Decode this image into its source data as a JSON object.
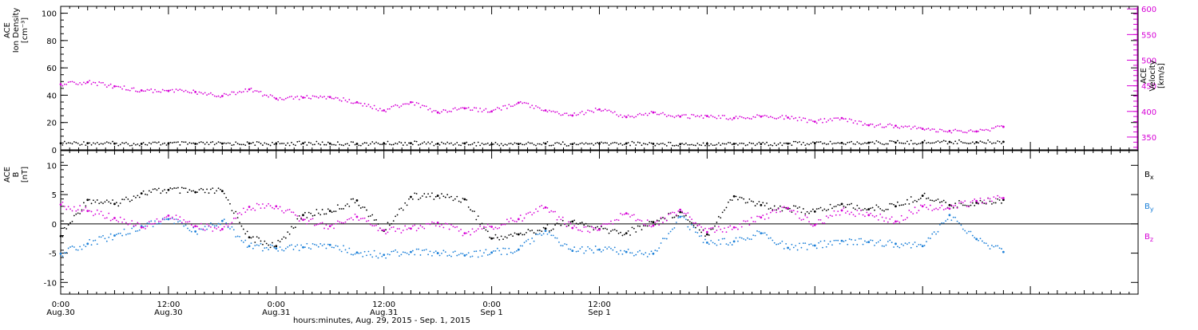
{
  "colors": {
    "black": "#000000",
    "magenta": "#d600d6",
    "blue": "#1a7fd8",
    "background": "#ffffff"
  },
  "chart_data": [
    {
      "type": "scatter",
      "panel": "plasma",
      "ylabel_left_lines": [
        "ACE",
        "Ion Density",
        "[cm⁻³]"
      ],
      "ylabel_right_lines": [
        "ACE",
        "Velocity",
        "[km/s]"
      ],
      "yticks_left": [
        "0",
        "20",
        "40",
        "60",
        "80",
        "100"
      ],
      "ylim_left": [
        0,
        105
      ],
      "yticks_right": [
        "350",
        "400",
        "450",
        "500",
        "550",
        "600"
      ],
      "ylim_right": [
        325,
        605
      ],
      "series": [
        {
          "axis": "left",
          "color": "black",
          "x": [
            0,
            3,
            6,
            9,
            12,
            15,
            18,
            21,
            24,
            27,
            30,
            33,
            36,
            39,
            42,
            45,
            48,
            51,
            54,
            57,
            60,
            63,
            66,
            69,
            72,
            75,
            78,
            81,
            84,
            87,
            90,
            93,
            96,
            99,
            102,
            105
          ],
          "y": [
            4.8,
            4.9,
            4.6,
            4.4,
            4.6,
            4.4,
            4.6,
            4.7,
            4.5,
            4.8,
            4.6,
            4.4,
            4.7,
            4.9,
            4.5,
            4.7,
            4.1,
            4.3,
            4.6,
            4.2,
            4.5,
            4.7,
            4.4,
            4.2,
            4.5,
            4.4,
            4.3,
            4.6,
            4.9,
            5.1,
            5.2,
            5.3,
            5.5,
            5.8,
            5.6,
            5.9
          ]
        },
        {
          "axis": "right",
          "color": "magenta",
          "x": [
            0,
            3,
            6,
            9,
            12,
            15,
            18,
            21,
            24,
            27,
            30,
            33,
            36,
            39,
            42,
            45,
            48,
            51,
            54,
            57,
            60,
            63,
            66,
            69,
            72,
            75,
            78,
            81,
            84,
            87,
            90,
            93,
            96,
            99,
            102,
            105
          ],
          "y": [
            453,
            457,
            449,
            441,
            440,
            438,
            430,
            443,
            425,
            427,
            428,
            418,
            402,
            418,
            398,
            406,
            400,
            417,
            402,
            392,
            404,
            389,
            398,
            390,
            391,
            387,
            390,
            388,
            380,
            387,
            373,
            372,
            366,
            362,
            361,
            370
          ]
        }
      ]
    },
    {
      "type": "scatter",
      "panel": "magnetic-field",
      "ylabel_left_lines": [
        "ACE",
        "B",
        "[nT]"
      ],
      "yticks_left": [
        "-10",
        "-5",
        "0",
        "5",
        "10"
      ],
      "ylim_left": [
        -12,
        12.5
      ],
      "series": [
        {
          "name": "Bx",
          "color": "black",
          "x": [
            0,
            3,
            6,
            9,
            12,
            15,
            18,
            21,
            24,
            27,
            30,
            33,
            36,
            39,
            42,
            45,
            48,
            51,
            54,
            57,
            60,
            63,
            66,
            69,
            72,
            75,
            78,
            81,
            84,
            87,
            90,
            93,
            96,
            99,
            102,
            105
          ],
          "y": [
            -2.1,
            4.1,
            3.4,
            5.2,
            5.8,
            5.4,
            5.6,
            -2.3,
            -3.8,
            1.5,
            2.2,
            4.0,
            -1.2,
            4.6,
            4.8,
            4.2,
            -2.5,
            -1.8,
            -0.8,
            0.4,
            -0.9,
            -1.6,
            0.3,
            2.0,
            -1.8,
            4.7,
            3.2,
            2.6,
            2.1,
            3.4,
            2.5,
            3.0,
            4.8,
            3.2,
            3.6,
            4.1
          ]
        },
        {
          "name": "By",
          "color": "blue",
          "x": [
            0,
            3,
            6,
            9,
            12,
            15,
            18,
            21,
            24,
            27,
            30,
            33,
            36,
            39,
            42,
            45,
            48,
            51,
            54,
            57,
            60,
            63,
            66,
            69,
            72,
            75,
            78,
            81,
            84,
            87,
            90,
            93,
            96,
            99,
            102,
            105
          ],
          "y": [
            -5.1,
            -3.4,
            -2.0,
            -0.4,
            0.8,
            -1.3,
            0.5,
            -3.8,
            -4.2,
            -4.0,
            -3.6,
            -4.9,
            -5.3,
            -4.8,
            -5.0,
            -5.4,
            -4.9,
            -4.4,
            -1.2,
            -4.6,
            -4.4,
            -4.8,
            -5.1,
            1.2,
            -3.2,
            -3.0,
            -1.6,
            -4.1,
            -3.7,
            -2.9,
            -3.1,
            -3.4,
            -3.8,
            1.5,
            -2.6,
            -4.8
          ]
        },
        {
          "name": "Bz",
          "color": "magenta",
          "x": [
            0,
            3,
            6,
            9,
            12,
            15,
            18,
            21,
            24,
            27,
            30,
            33,
            36,
            39,
            42,
            45,
            48,
            51,
            54,
            57,
            60,
            63,
            66,
            69,
            72,
            75,
            78,
            81,
            84,
            87,
            90,
            93,
            96,
            99,
            102,
            105
          ],
          "y": [
            3.3,
            2.2,
            1.0,
            -0.6,
            1.4,
            -0.4,
            -0.9,
            2.9,
            3.0,
            0.7,
            -0.4,
            1.2,
            -1.1,
            -0.8,
            0.2,
            -1.6,
            -0.5,
            0.8,
            2.8,
            -0.7,
            -1.0,
            1.8,
            -0.3,
            2.4,
            -1.4,
            -0.6,
            1.1,
            2.7,
            -0.2,
            2.3,
            1.5,
            0.4,
            3.0,
            2.6,
            3.9,
            4.4
          ]
        }
      ]
    }
  ],
  "shared_x_axis": {
    "xlim": [
      0,
      120
    ],
    "ticks": [
      {
        "x": 0,
        "time": "0:00",
        "date": "Aug.30"
      },
      {
        "x": 12,
        "time": "12:00",
        "date": "Aug.30"
      },
      {
        "x": 24,
        "time": "0:00",
        "date": "Aug.31"
      },
      {
        "x": 36,
        "time": "12:00",
        "date": "Aug.31"
      },
      {
        "x": 48,
        "time": "0:00",
        "date": "Sep 1"
      },
      {
        "x": 60,
        "time": "12:00",
        "date": "Sep 1"
      }
    ],
    "xlabel": "hours:minutes, Aug. 29, 2015 - Sep.  1, 2015"
  },
  "legend": [
    {
      "label": "Bx",
      "base": "B",
      "sub": "x",
      "color": "black"
    },
    {
      "label": "By",
      "base": "B",
      "sub": "y",
      "color": "blue"
    },
    {
      "label": "Bz",
      "base": "B",
      "sub": "z",
      "color": "magenta"
    }
  ]
}
